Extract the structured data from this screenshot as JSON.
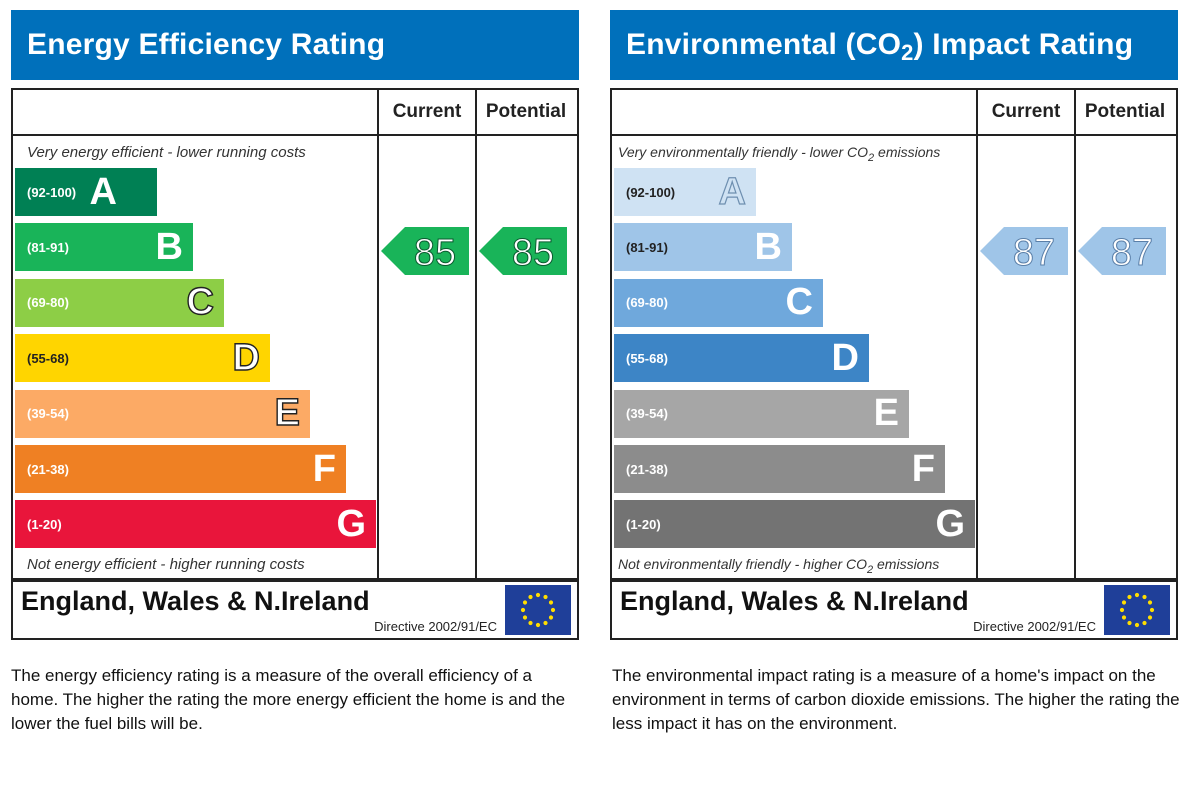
{
  "colors": {
    "header_bg": "#0070bb",
    "ee_bands": [
      "#008054",
      "#19b459",
      "#8dce46",
      "#ffd500",
      "#fcaa65",
      "#ef8023",
      "#e9153b"
    ],
    "ei_bands": [
      "#cfe2f3",
      "#9fc5e8",
      "#6fa8dc",
      "#3d85c6",
      "#a6a6a6",
      "#8c8c8c",
      "#737373"
    ]
  },
  "chart_data": [
    {
      "type": "bar",
      "title": "Energy Efficiency Rating",
      "columns": [
        "Current",
        "Potential"
      ],
      "top_note": "Very energy efficient - lower running costs",
      "bottom_note": "Not energy efficient - higher running costs",
      "bands": [
        {
          "range": "(92-100)",
          "letter": "A",
          "min": 92,
          "max": 100
        },
        {
          "range": "(81-91)",
          "letter": "B",
          "min": 81,
          "max": 91
        },
        {
          "range": "(69-80)",
          "letter": "C",
          "min": 69,
          "max": 80
        },
        {
          "range": "(55-68)",
          "letter": "D",
          "min": 55,
          "max": 68
        },
        {
          "range": "(39-54)",
          "letter": "E",
          "min": 39,
          "max": 54
        },
        {
          "range": "(21-38)",
          "letter": "F",
          "min": 21,
          "max": 38
        },
        {
          "range": "(1-20)",
          "letter": "G",
          "min": 1,
          "max": 20
        }
      ],
      "current": 85,
      "potential": 85,
      "region": "England, Wales & N.Ireland",
      "directive": "Directive 2002/91/EC",
      "description": "The energy efficiency rating is a measure of the overall efficiency of a home. The higher the rating the more energy efficient the home is and the lower the fuel bills will be."
    },
    {
      "type": "bar",
      "title": "Environmental (CO2) Impact Rating",
      "columns": [
        "Current",
        "Potential"
      ],
      "top_note": "Very environmentally friendly - lower CO2 emissions",
      "bottom_note": "Not environmentally friendly - higher CO2 emissions",
      "bands": [
        {
          "range": "(92-100)",
          "letter": "A",
          "min": 92,
          "max": 100
        },
        {
          "range": "(81-91)",
          "letter": "B",
          "min": 81,
          "max": 91
        },
        {
          "range": "(69-80)",
          "letter": "C",
          "min": 69,
          "max": 80
        },
        {
          "range": "(55-68)",
          "letter": "D",
          "min": 55,
          "max": 68
        },
        {
          "range": "(39-54)",
          "letter": "E",
          "min": 39,
          "max": 54
        },
        {
          "range": "(21-38)",
          "letter": "F",
          "min": 21,
          "max": 38
        },
        {
          "range": "(1-20)",
          "letter": "G",
          "min": 1,
          "max": 20
        }
      ],
      "current": 87,
      "potential": 87,
      "region": "England, Wales & N.Ireland",
      "directive": "Directive 2002/91/EC",
      "description": "The environmental impact rating is a measure of a home's impact on the environment in terms of carbon dioxide emissions. The higher the rating the less impact it has on the environment."
    }
  ],
  "icons": {
    "eu_flag": "eu-flag-icon"
  }
}
